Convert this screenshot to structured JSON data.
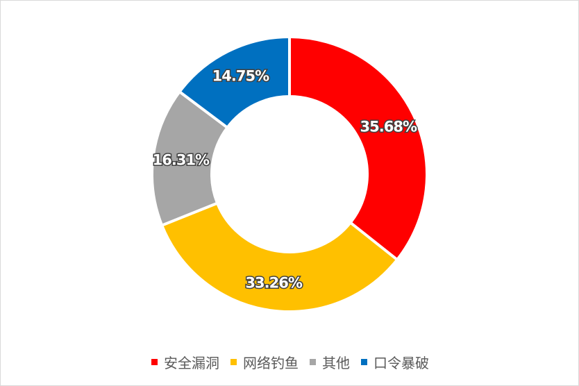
{
  "chart_data": {
    "type": "pie",
    "donut": true,
    "title": "",
    "categories": [
      "安全漏洞",
      "网络钓鱼",
      "其他",
      "口令暴破"
    ],
    "values": [
      35.68,
      33.26,
      16.31,
      14.75
    ],
    "labels": [
      "35.68%",
      "33.26%",
      "16.31%",
      "14.75%"
    ],
    "colors": [
      "#ff0000",
      "#ffc000",
      "#a6a6a6",
      "#0070c0"
    ],
    "legend_position": "bottom",
    "start": "top",
    "direction": "clockwise"
  }
}
